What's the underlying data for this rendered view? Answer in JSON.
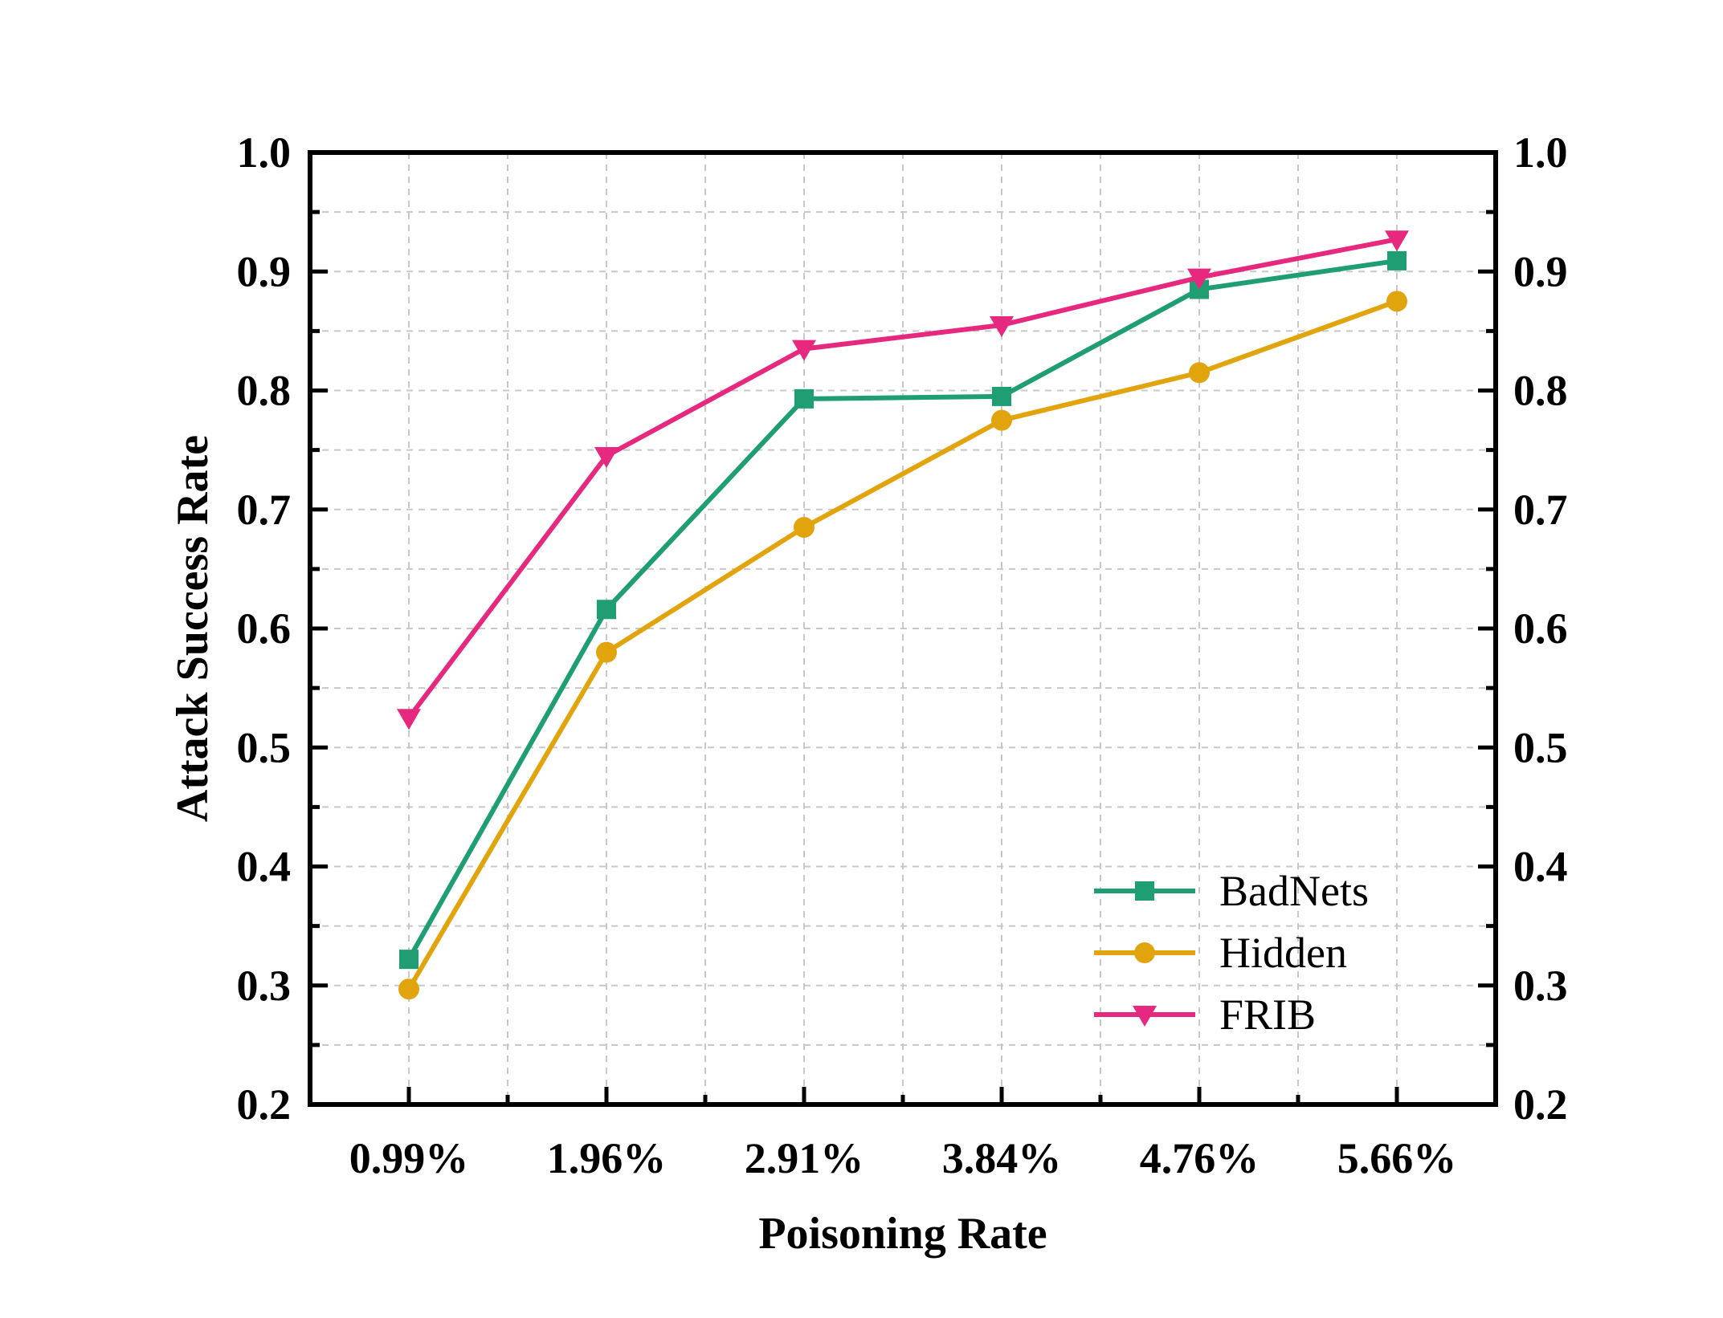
{
  "chart_data": {
    "type": "line",
    "title": "",
    "xlabel": "Poisoning Rate",
    "ylabel": "Attack Success Rate",
    "categories": [
      "0.99%",
      "1.96%",
      "2.91%",
      "3.84%",
      "4.76%",
      "5.66%"
    ],
    "ylim": [
      0.2,
      1.0
    ],
    "yticks": [
      "0.2",
      "0.3",
      "0.4",
      "0.5",
      "0.6",
      "0.7",
      "0.8",
      "0.9",
      "1.0"
    ],
    "right_axis_mirrored": true,
    "grid": true,
    "legend_position": "bottom-right",
    "series": [
      {
        "name": "BadNets",
        "color": "#1f9e74",
        "marker": "square",
        "values": [
          0.322,
          0.616,
          0.793,
          0.795,
          0.885,
          0.909
        ]
      },
      {
        "name": "Hidden",
        "color": "#e2a40c",
        "marker": "circle",
        "values": [
          0.297,
          0.58,
          0.685,
          0.775,
          0.815,
          0.875
        ]
      },
      {
        "name": "FRIB",
        "color": "#e6297f",
        "marker": "triangle-down",
        "values": [
          0.525,
          0.745,
          0.835,
          0.855,
          0.895,
          0.927
        ]
      }
    ]
  }
}
